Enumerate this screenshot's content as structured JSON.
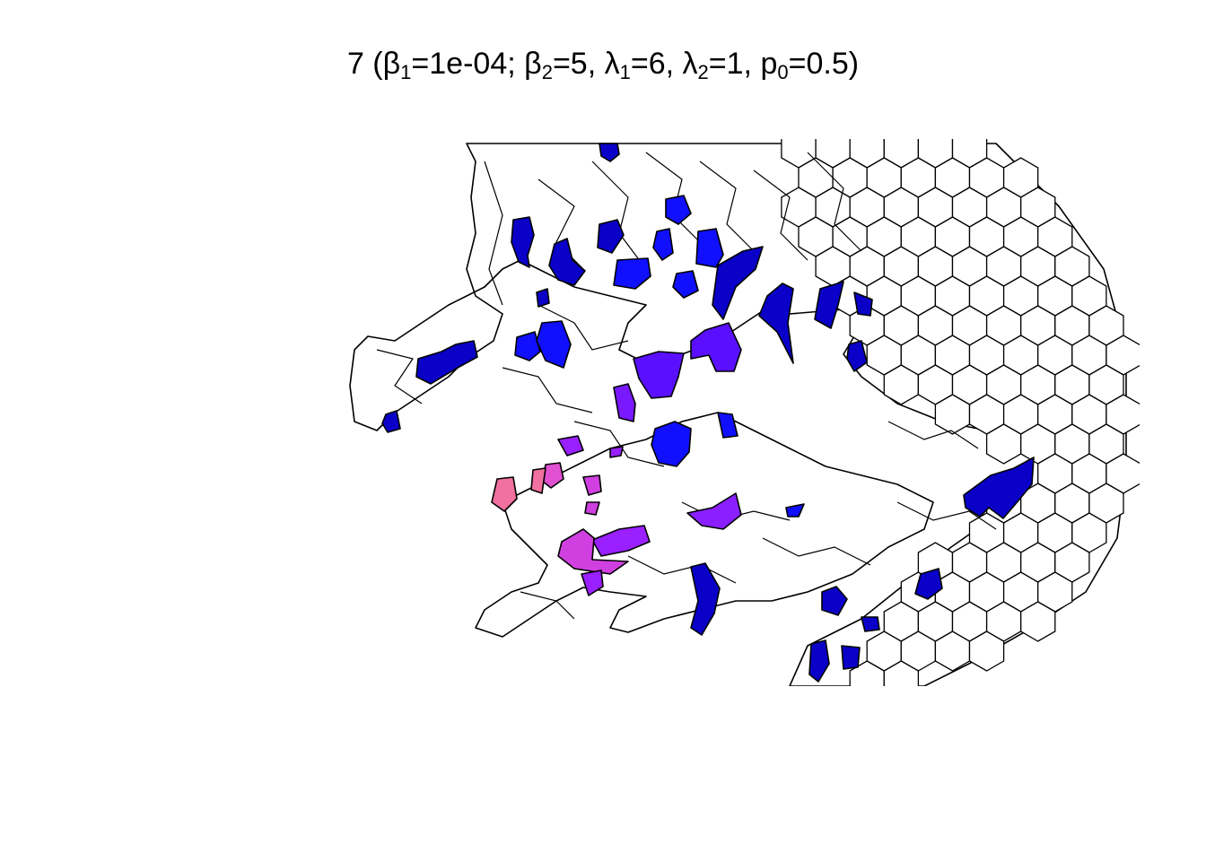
{
  "title": {
    "prefix": "7 (β",
    "sub1": "1",
    "part2": "=1e-04; β",
    "sub2": "2",
    "part3": "=5, λ",
    "sub3": "1",
    "part4": "=6, λ",
    "sub4": "2",
    "part5": "=1, p",
    "sub5": "0",
    "part6": "=0.5)"
  },
  "colors": {
    "outline": "#000000",
    "empty": "#ffffff",
    "dark_blue": "#0a00c8",
    "blue": "#1010ff",
    "violet": "#5a10ff",
    "purple": "#9a20ff",
    "magenta": "#d040e0",
    "pink": "#f070a0"
  }
}
